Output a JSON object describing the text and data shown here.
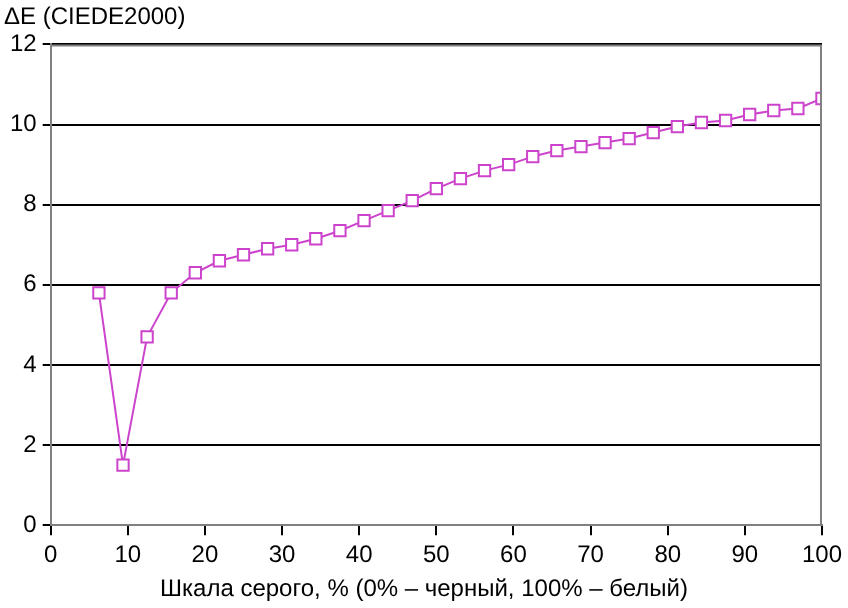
{
  "chart_data": {
    "type": "line",
    "ylabel": "ΔE (CIEDE2000)",
    "xlabel": "Шкала серого, % (0% – черный, 100% – белый)",
    "x": [
      6.25,
      9.375,
      12.5,
      15.625,
      18.75,
      21.875,
      25,
      28.125,
      31.25,
      34.375,
      37.5,
      40.625,
      43.75,
      46.875,
      50,
      53.125,
      56.25,
      59.375,
      62.5,
      65.625,
      68.75,
      71.875,
      75,
      78.125,
      81.25,
      84.375,
      87.5,
      90.625,
      93.75,
      96.875,
      100
    ],
    "series": [
      {
        "color": "#cc44cc",
        "values": [
          5.8,
          1.5,
          4.7,
          5.8,
          6.3,
          6.6,
          6.75,
          6.9,
          7.0,
          7.15,
          7.35,
          7.6,
          7.85,
          8.1,
          8.4,
          8.65,
          8.85,
          9.0,
          9.2,
          9.35,
          9.45,
          9.55,
          9.65,
          9.8,
          9.95,
          10.05,
          10.1,
          10.25,
          10.35,
          10.4,
          10.65
        ]
      }
    ],
    "xlim": [
      0,
      100
    ],
    "xticks": [
      0,
      10,
      20,
      30,
      40,
      50,
      60,
      70,
      80,
      90,
      100
    ],
    "ylim": [
      0,
      12
    ],
    "yticks": [
      0,
      2,
      4,
      6,
      8,
      10,
      12
    ],
    "grid": "y",
    "legend": false,
    "marker": "square",
    "line_style": "solid"
  }
}
